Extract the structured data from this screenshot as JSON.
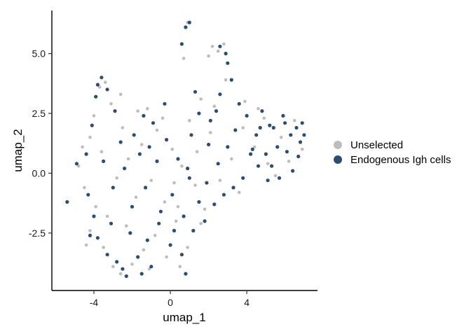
{
  "chart_data": {
    "type": "scatter",
    "title": "",
    "xlabel": "umap_1",
    "ylabel": "umap_2",
    "xlim": [
      -6.2,
      7.7
    ],
    "ylim": [
      -4.9,
      6.8
    ],
    "xticks": [
      {
        "value": -4,
        "label": "-4"
      },
      {
        "value": 0,
        "label": "0"
      },
      {
        "value": 4,
        "label": "4"
      }
    ],
    "yticks": [
      {
        "value": -2.5,
        "label": "-2.5"
      },
      {
        "value": 0,
        "label": "0.0"
      },
      {
        "value": 2.5,
        "label": "2.5"
      },
      {
        "value": 5,
        "label": "5.0"
      }
    ],
    "grid": false,
    "legend_position": "right",
    "series": [
      {
        "name": "Unselected",
        "color": "#bdbdbd",
        "points": [
          [
            -4.0,
            2.4
          ],
          [
            -3.7,
            3.6
          ],
          [
            -3.4,
            3.8
          ],
          [
            -4.2,
            1.5
          ],
          [
            -4.6,
            1.1
          ],
          [
            -4.8,
            0.3
          ],
          [
            -4.5,
            -0.6
          ],
          [
            -3.9,
            -1.4
          ],
          [
            -4.2,
            -2.4
          ],
          [
            -3.5,
            -3.1
          ],
          [
            -3.0,
            -3.9
          ],
          [
            -2.6,
            -4.2
          ],
          [
            -2.0,
            -3.8
          ],
          [
            -1.4,
            -3.2
          ],
          [
            -0.8,
            -2.6
          ],
          [
            -0.2,
            -3.5
          ],
          [
            0.5,
            -3.9
          ],
          [
            0.9,
            -3.1
          ],
          [
            1.6,
            -2.1
          ],
          [
            1.8,
            -1.5
          ],
          [
            1.3,
            -0.5
          ],
          [
            0.6,
            0.3
          ],
          [
            0.1,
            1.0
          ],
          [
            -0.7,
            1.8
          ],
          [
            -1.5,
            1.2
          ],
          [
            -2.2,
            0.6
          ],
          [
            -2.8,
            -0.2
          ],
          [
            -1.8,
            -1.0
          ],
          [
            -1.0,
            -0.3
          ],
          [
            -0.3,
            -1.2
          ],
          [
            0.3,
            -2.0
          ],
          [
            1.0,
            2.2
          ],
          [
            1.6,
            3.1
          ],
          [
            2.3,
            2.8
          ],
          [
            2.9,
            3.9
          ],
          [
            2.2,
            5.3
          ],
          [
            2.5,
            5.1
          ],
          [
            2.0,
            4.9
          ],
          [
            2.8,
            5.4
          ],
          [
            0.7,
            4.8
          ],
          [
            0.9,
            6.3
          ],
          [
            -2.6,
            3.3
          ],
          [
            -3.1,
            2.9
          ],
          [
            -1.2,
            2.7
          ],
          [
            3.8,
            1.9
          ],
          [
            4.4,
            1.1
          ],
          [
            5.1,
            0.4
          ],
          [
            5.8,
            1.5
          ],
          [
            6.5,
            2.2
          ],
          [
            6.9,
            1.0
          ],
          [
            3.2,
            0.6
          ],
          [
            2.6,
            -0.3
          ],
          [
            3.6,
            -0.8
          ],
          [
            2.1,
            1.7
          ],
          [
            -0.4,
            2.3
          ],
          [
            -2.3,
            -2.2
          ],
          [
            -3.3,
            -1.8
          ],
          [
            -1.1,
            -4.0
          ],
          [
            0.2,
            -0.4
          ],
          [
            1.4,
            0.9
          ],
          [
            4.9,
            2.3
          ],
          [
            5.5,
            -0.1
          ],
          [
            -4.4,
            -3.0
          ],
          [
            -3.6,
            0.9
          ],
          [
            -2.5,
            1.9
          ],
          [
            -1.7,
            2.6
          ],
          [
            3.9,
            3.0
          ],
          [
            4.6,
            2.7
          ],
          [
            6.2,
            0.5
          ],
          [
            0.4,
            -1.4
          ]
        ]
      },
      {
        "name": "Endogenous Igh cells",
        "color": "#2a4d74",
        "points": [
          [
            -4.1,
            2.0
          ],
          [
            -3.8,
            3.7
          ],
          [
            -3.3,
            3.5
          ],
          [
            -3.6,
            4.0
          ],
          [
            -4.4,
            0.8
          ],
          [
            -4.9,
            0.4
          ],
          [
            -4.3,
            -0.9
          ],
          [
            -4.0,
            -1.8
          ],
          [
            -3.8,
            -2.7
          ],
          [
            -3.3,
            -3.4
          ],
          [
            -2.8,
            -3.7
          ],
          [
            -2.3,
            -4.3
          ],
          [
            -1.7,
            -3.5
          ],
          [
            -1.2,
            -2.8
          ],
          [
            -0.6,
            -2.1
          ],
          [
            0.0,
            -3.0
          ],
          [
            0.6,
            -3.4
          ],
          [
            0.8,
            -4.2
          ],
          [
            1.2,
            -2.4
          ],
          [
            1.5,
            -1.2
          ],
          [
            1.0,
            -0.2
          ],
          [
            0.4,
            0.6
          ],
          [
            -0.2,
            1.4
          ],
          [
            -0.9,
            2.1
          ],
          [
            -1.6,
            0.8
          ],
          [
            -2.4,
            0.2
          ],
          [
            -3.0,
            -0.6
          ],
          [
            -2.0,
            -1.4
          ],
          [
            -1.3,
            -0.6
          ],
          [
            -0.5,
            -1.6
          ],
          [
            0.2,
            -2.4
          ],
          [
            1.1,
            1.6
          ],
          [
            1.5,
            2.5
          ],
          [
            2.1,
            2.2
          ],
          [
            2.6,
            3.3
          ],
          [
            3.0,
            4.6
          ],
          [
            2.9,
            5.0
          ],
          [
            2.6,
            5.3
          ],
          [
            3.2,
            3.9
          ],
          [
            0.6,
            5.4
          ],
          [
            0.8,
            6.1
          ],
          [
            1.0,
            6.3
          ],
          [
            -2.9,
            2.6
          ],
          [
            -1.4,
            2.4
          ],
          [
            3.6,
            2.9
          ],
          [
            4.0,
            2.4
          ],
          [
            4.5,
            1.6
          ],
          [
            5.0,
            0.8
          ],
          [
            5.4,
            1.9
          ],
          [
            5.9,
            2.4
          ],
          [
            6.3,
            1.6
          ],
          [
            6.7,
            0.7
          ],
          [
            7.0,
            1.6
          ],
          [
            6.9,
            2.1
          ],
          [
            6.4,
            0.1
          ],
          [
            5.7,
            -0.2
          ],
          [
            5.1,
            -0.3
          ],
          [
            4.6,
            0.3
          ],
          [
            4.2,
            0.8
          ],
          [
            3.8,
            -0.2
          ],
          [
            3.3,
            -0.6
          ],
          [
            2.8,
            -0.9
          ],
          [
            2.3,
            -1.3
          ],
          [
            1.9,
            -0.4
          ],
          [
            2.5,
            0.4
          ],
          [
            3.0,
            1.1
          ],
          [
            3.4,
            1.8
          ],
          [
            4.8,
            2.6
          ],
          [
            5.6,
            1.1
          ],
          [
            6.1,
            0.9
          ],
          [
            6.6,
            1.9
          ],
          [
            5.2,
            2.0
          ],
          [
            4.3,
            1.0
          ],
          [
            -2.1,
            -2.5
          ],
          [
            -3.1,
            -2.1
          ],
          [
            -1.0,
            -3.9
          ],
          [
            0.1,
            -0.9
          ],
          [
            0.9,
            0.2
          ],
          [
            -0.7,
            0.5
          ],
          [
            -1.9,
            1.6
          ],
          [
            -2.6,
            1.3
          ],
          [
            -3.5,
            0.5
          ],
          [
            -4.2,
            -2.6
          ],
          [
            -5.4,
            -1.2
          ],
          [
            -2.5,
            -4.0
          ],
          [
            -1.5,
            -4.2
          ],
          [
            0.7,
            -1.8
          ],
          [
            1.8,
            -2.0
          ],
          [
            2.0,
            1.2
          ],
          [
            1.3,
            3.4
          ],
          [
            -0.3,
            2.9
          ],
          [
            -1.1,
            1.1
          ],
          [
            2.4,
            2.6
          ],
          [
            6.8,
            1.3
          ],
          [
            6.0,
            2.1
          ],
          [
            5.3,
            0.3
          ],
          [
            4.7,
            1.9
          ],
          [
            -3.9,
            3.2
          ]
        ]
      }
    ]
  }
}
